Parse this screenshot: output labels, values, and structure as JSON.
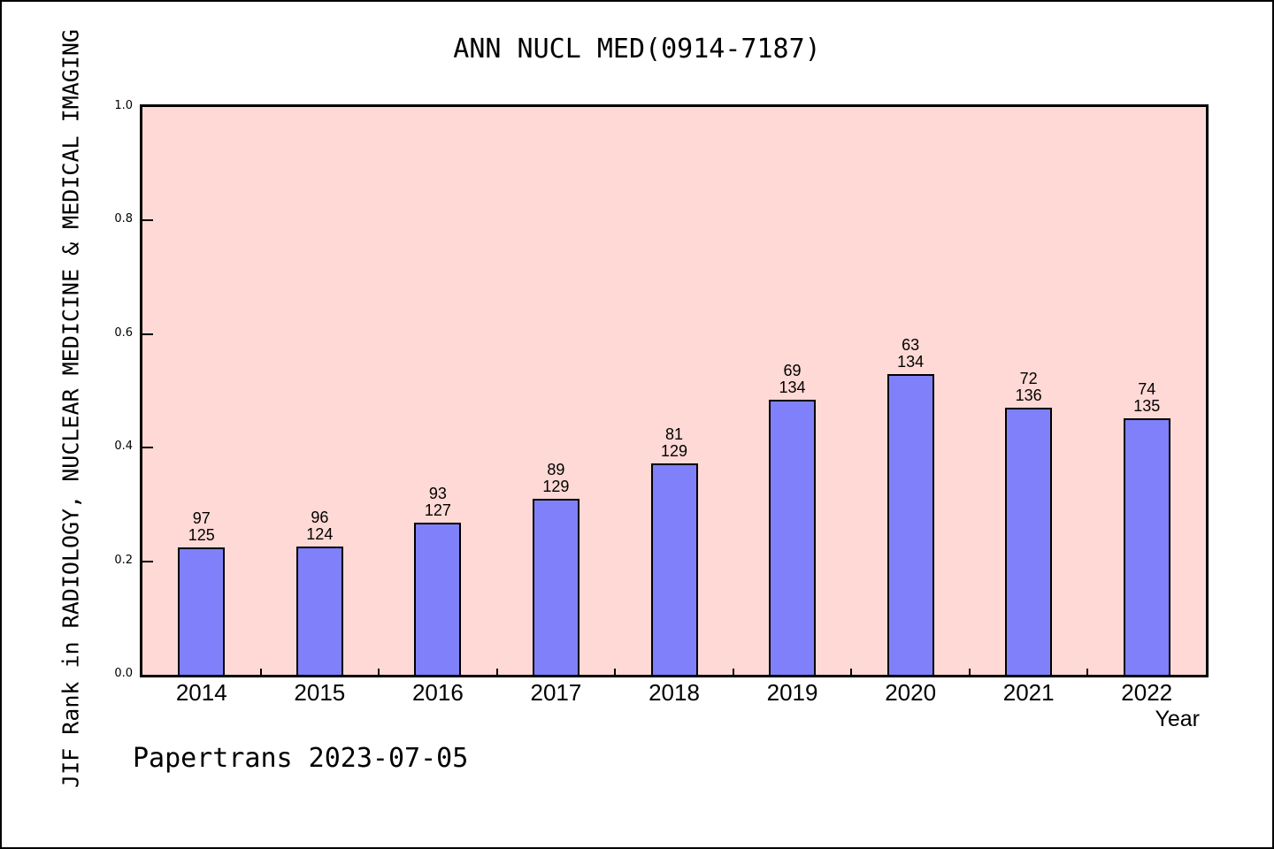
{
  "window": {
    "background": "#ffffff",
    "border_color": "#000000"
  },
  "chart_data": {
    "type": "bar",
    "title": "ANN NUCL MED(0914-7187)",
    "xlabel": "Year",
    "ylabel": "JIF Rank in RADIOLOGY, NUCLEAR MEDICINE & MEDICAL IMAGING",
    "annotation": "Papertrans 2023-07-05",
    "ylim": [
      0.0,
      1.0
    ],
    "yticks": [
      0.0,
      0.2,
      0.4,
      0.6,
      0.8,
      1.0
    ],
    "ytick_labels": [
      "0.0",
      "0.2",
      "0.4",
      "0.6",
      "0.8",
      "1.0"
    ],
    "categories": [
      "2014",
      "2015",
      "2016",
      "2017",
      "2018",
      "2019",
      "2020",
      "2021",
      "2022"
    ],
    "values": [
      0.224,
      0.2258,
      0.2677,
      0.3101,
      0.3721,
      0.4851,
      0.5299,
      0.4706,
      0.4519
    ],
    "bar_labels": [
      {
        "rank": "97",
        "total": "125"
      },
      {
        "rank": "96",
        "total": "124"
      },
      {
        "rank": "93",
        "total": "127"
      },
      {
        "rank": "89",
        "total": "129"
      },
      {
        "rank": "81",
        "total": "129"
      },
      {
        "rank": "69",
        "total": "134"
      },
      {
        "rank": "63",
        "total": "134"
      },
      {
        "rank": "72",
        "total": "136"
      },
      {
        "rank": "74",
        "total": "135"
      }
    ],
    "grid": false,
    "legend": "none",
    "colors": {
      "bar_fill": "#8080fa",
      "bar_border": "#000000",
      "plot_bg": "#fed9d5",
      "text": "#000000"
    }
  }
}
